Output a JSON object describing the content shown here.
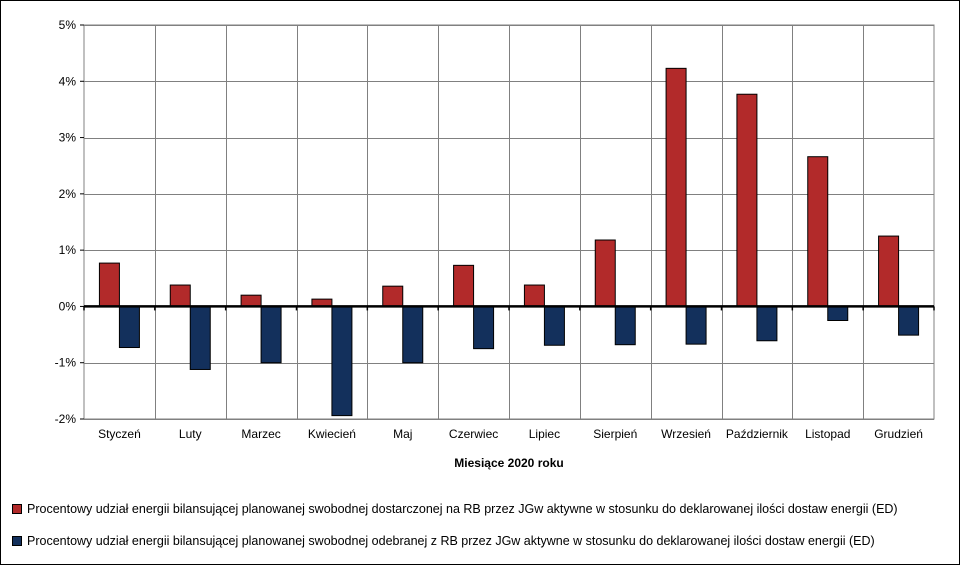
{
  "chart_data": {
    "type": "bar",
    "categories": [
      "Styczeń",
      "Luty",
      "Marzec",
      "Kwiecień",
      "Maj",
      "Czerwiec",
      "Lipiec",
      "Sierpień",
      "Wrzesień",
      "Październik",
      "Listopad",
      "Grudzień"
    ],
    "series": [
      {
        "name": "Procentowy udział energii bilansującej planowanej swobodnej dostarczonej na RB przez JGw aktywne w stosunku do deklarowanej ilości dostaw energii (ED)",
        "color": "#b22a2a",
        "values": [
          0.77,
          0.38,
          0.2,
          0.13,
          0.36,
          0.73,
          0.38,
          1.18,
          4.23,
          3.77,
          2.66,
          1.25
        ]
      },
      {
        "name": "Procentowy udział energii bilansującej planowanej swobodnej odebranej z RB przez JGw aktywne w stosunku do deklarowanej ilości dostaw energii (ED)",
        "color": "#13305c",
        "values": [
          -0.73,
          -1.12,
          -1.0,
          -1.94,
          -1.0,
          -0.75,
          -0.69,
          -0.68,
          -0.67,
          -0.61,
          -0.25,
          -0.51
        ]
      }
    ],
    "y_ticks": [
      "5%",
      "4%",
      "3%",
      "2%",
      "1%",
      "0%",
      "-1%",
      "-2%"
    ],
    "ylim": [
      -2,
      5
    ],
    "xlabel": "Miesiące 2020  roku",
    "ylabel": "",
    "grid": true,
    "legend_position": "bottom"
  }
}
